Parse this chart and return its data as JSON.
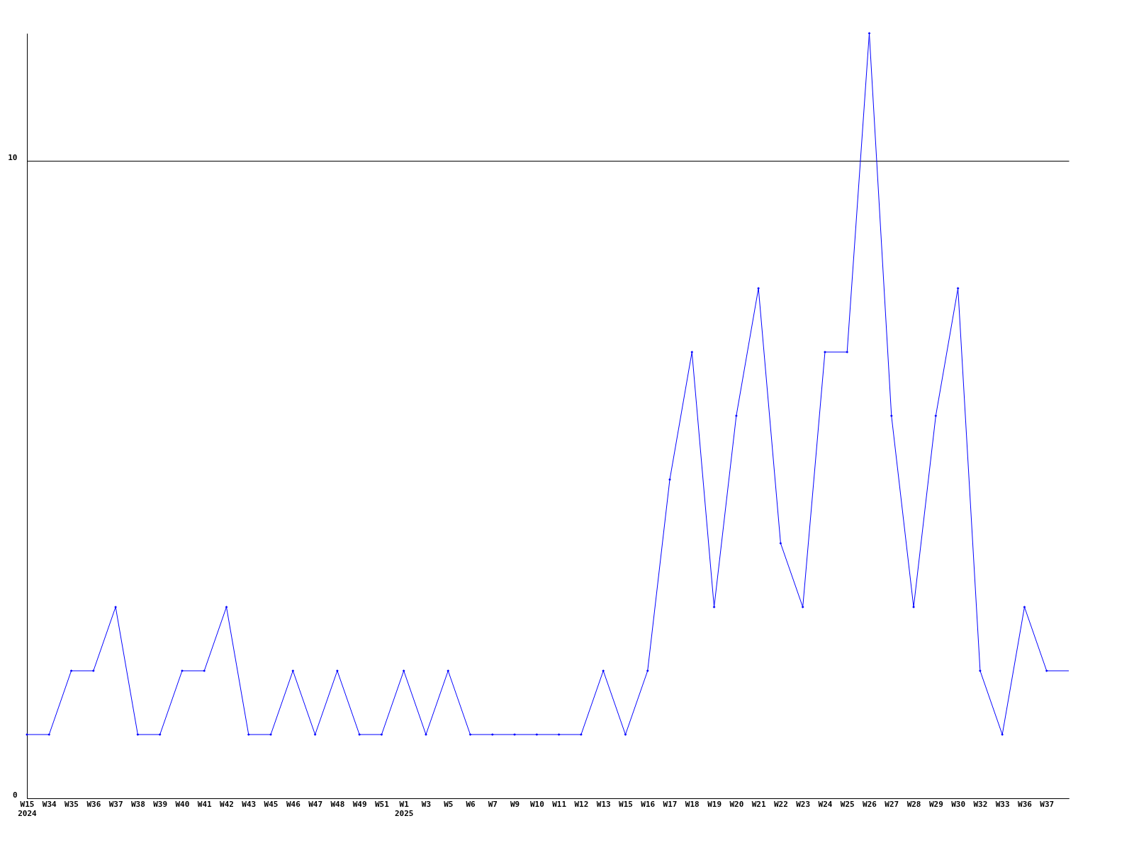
{
  "chart_data": {
    "type": "line",
    "categories": [
      "W15\n2024",
      "W34",
      "W35",
      "W36",
      "W37",
      "W38",
      "W39",
      "W40",
      "W41",
      "W42",
      "W43",
      "W45",
      "W46",
      "W47",
      "W48",
      "W49",
      "W51",
      "W1\n2025",
      "W3",
      "W5",
      "W6",
      "W7",
      "W9",
      "W10",
      "W11",
      "W12",
      "W13",
      "W15",
      "W16",
      "W17",
      "W18",
      "W19",
      "W20",
      "W21",
      "W22",
      "W23",
      "W24",
      "W25",
      "W26",
      "W27",
      "W28",
      "W29",
      "W30",
      "W32",
      "W33",
      "W36",
      "W37",
      null
    ],
    "series": [
      {
        "color": "#0000ff",
        "values": [
          1,
          1,
          2,
          2,
          3,
          1,
          1,
          2,
          2,
          3,
          1,
          1,
          2,
          1,
          2,
          1,
          1,
          2,
          1,
          2,
          1,
          1,
          1,
          1,
          1,
          1,
          2,
          1,
          2,
          5,
          7,
          3,
          6,
          8,
          4,
          3,
          7,
          7,
          12,
          6,
          3,
          6,
          8,
          2,
          1,
          3,
          2,
          2
        ]
      }
    ],
    "ylim": [
      0,
      12
    ],
    "yticks": [
      0,
      10
    ],
    "grid": "y",
    "marker": "diamond",
    "line_style": "solid"
  }
}
